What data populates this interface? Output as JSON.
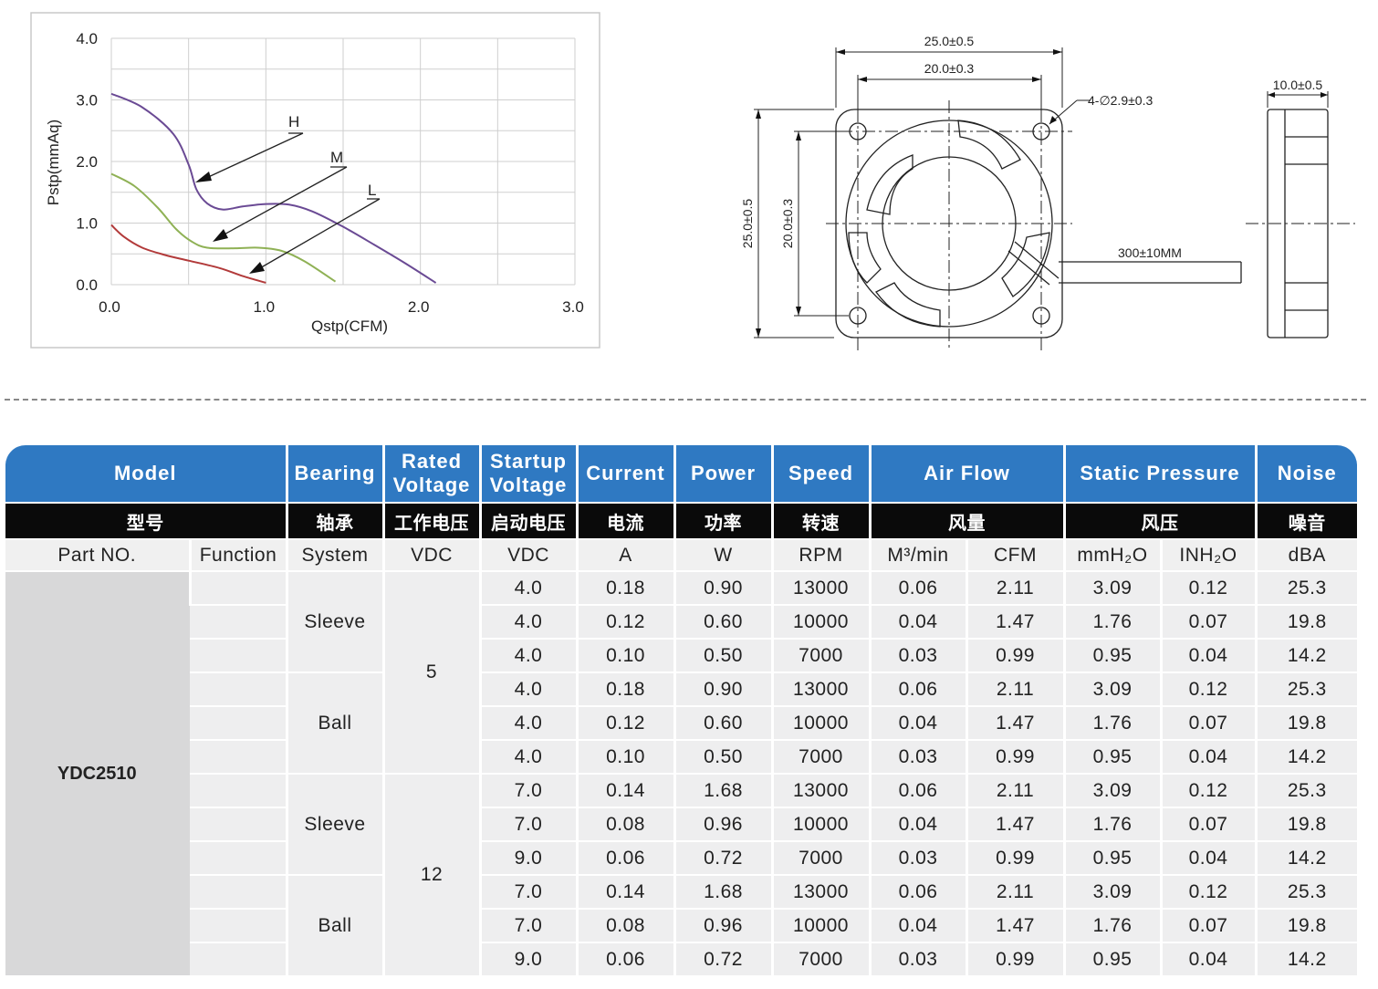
{
  "chart_data": {
    "type": "line",
    "xlabel": "Qstp(CFM)",
    "ylabel": "Pstp(mmAq)",
    "xlim": [
      0,
      3
    ],
    "ylim": [
      0,
      4
    ],
    "x_ticks": [
      "0.0",
      "1.0",
      "2.0",
      "3.0"
    ],
    "y_ticks": [
      "0.0",
      "1.0",
      "2.0",
      "3.0",
      "4.0"
    ],
    "grid": true,
    "series": [
      {
        "name": "H",
        "color": "#6a4a94",
        "points": [
          [
            0,
            3.1
          ],
          [
            0.2,
            2.88
          ],
          [
            0.4,
            2.45
          ],
          [
            0.5,
            1.95
          ],
          [
            0.55,
            1.55
          ],
          [
            0.62,
            1.32
          ],
          [
            0.72,
            1.22
          ],
          [
            0.85,
            1.27
          ],
          [
            1.0,
            1.31
          ],
          [
            1.15,
            1.3
          ],
          [
            1.3,
            1.19
          ],
          [
            1.5,
            0.94
          ],
          [
            1.7,
            0.65
          ],
          [
            1.9,
            0.35
          ],
          [
            2.1,
            0.03
          ]
        ]
      },
      {
        "name": "M",
        "color": "#8fb155",
        "points": [
          [
            0,
            1.8
          ],
          [
            0.15,
            1.6
          ],
          [
            0.3,
            1.25
          ],
          [
            0.42,
            0.9
          ],
          [
            0.52,
            0.7
          ],
          [
            0.62,
            0.6
          ],
          [
            0.8,
            0.59
          ],
          [
            0.95,
            0.6
          ],
          [
            1.1,
            0.55
          ],
          [
            1.25,
            0.38
          ],
          [
            1.45,
            0.05
          ]
        ]
      },
      {
        "name": "L",
        "color": "#b23a3a",
        "points": [
          [
            0,
            0.97
          ],
          [
            0.08,
            0.78
          ],
          [
            0.2,
            0.6
          ],
          [
            0.35,
            0.48
          ],
          [
            0.5,
            0.39
          ],
          [
            0.7,
            0.27
          ],
          [
            0.85,
            0.14
          ],
          [
            1.0,
            0.03
          ]
        ]
      }
    ]
  },
  "drawing": {
    "dim_outer_width": "25.0±0.5",
    "dim_inner_width": "20.0±0.3",
    "dim_hole": "4-∅2.9±0.3",
    "dim_outer_height": "25.0±0.5",
    "dim_inner_height": "20.0±0.3",
    "dim_lead": "300±10MM",
    "dim_thickness": "10.0±0.5"
  },
  "table": {
    "headers_en": [
      "Model",
      "Bearing",
      "Rated Voltage",
      "Startup Voltage",
      "Current",
      "Power",
      "Speed",
      "Air Flow",
      "Static Pressure",
      "Noise"
    ],
    "headers_zh": [
      "型号",
      "轴承",
      "工作电压",
      "启动电压",
      "电流",
      "功率",
      "转速",
      "风量",
      "风压",
      "噪音"
    ],
    "units": [
      "Part NO.",
      "Function",
      "System",
      "VDC",
      "VDC",
      "A",
      "W",
      "RPM",
      "M³/min",
      "CFM",
      "mmH₂O",
      "INH₂O",
      "dBA"
    ],
    "model": "YDC2510",
    "bearing_groups": [
      "Sleeve",
      "Ball",
      "Sleeve",
      "Ball"
    ],
    "voltage_groups": [
      "5",
      "12"
    ],
    "rows": [
      [
        "4.0",
        "0.18",
        "0.90",
        "13000",
        "0.06",
        "2.11",
        "3.09",
        "0.12",
        "25.3"
      ],
      [
        "4.0",
        "0.12",
        "0.60",
        "10000",
        "0.04",
        "1.47",
        "1.76",
        "0.07",
        "19.8"
      ],
      [
        "4.0",
        "0.10",
        "0.50",
        "7000",
        "0.03",
        "0.99",
        "0.95",
        "0.04",
        "14.2"
      ],
      [
        "4.0",
        "0.18",
        "0.90",
        "13000",
        "0.06",
        "2.11",
        "3.09",
        "0.12",
        "25.3"
      ],
      [
        "4.0",
        "0.12",
        "0.60",
        "10000",
        "0.04",
        "1.47",
        "1.76",
        "0.07",
        "19.8"
      ],
      [
        "4.0",
        "0.10",
        "0.50",
        "7000",
        "0.03",
        "0.99",
        "0.95",
        "0.04",
        "14.2"
      ],
      [
        "7.0",
        "0.14",
        "1.68",
        "13000",
        "0.06",
        "2.11",
        "3.09",
        "0.12",
        "25.3"
      ],
      [
        "7.0",
        "0.08",
        "0.96",
        "10000",
        "0.04",
        "1.47",
        "1.76",
        "0.07",
        "19.8"
      ],
      [
        "9.0",
        "0.06",
        "0.72",
        "7000",
        "0.03",
        "0.99",
        "0.95",
        "0.04",
        "14.2"
      ],
      [
        "7.0",
        "0.14",
        "1.68",
        "13000",
        "0.06",
        "2.11",
        "3.09",
        "0.12",
        "25.3"
      ],
      [
        "7.0",
        "0.08",
        "0.96",
        "10000",
        "0.04",
        "1.47",
        "1.76",
        "0.07",
        "19.8"
      ],
      [
        "9.0",
        "0.06",
        "0.72",
        "7000",
        "0.03",
        "0.99",
        "0.95",
        "0.04",
        "14.2"
      ]
    ]
  }
}
